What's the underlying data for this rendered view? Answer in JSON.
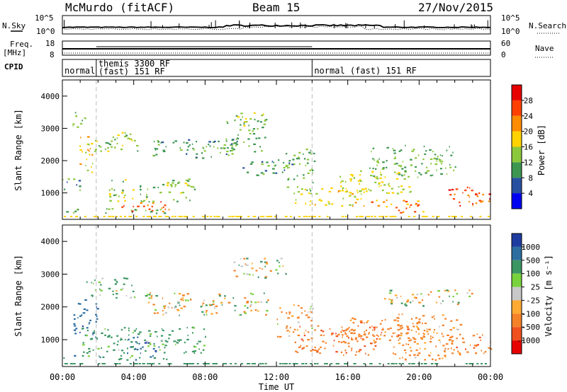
{
  "header": {
    "station": "McMurdo (fitACF)",
    "beam": "Beam 15",
    "date": "27/Nov/2015"
  },
  "top_panels": {
    "nsky_label": "N.Sky",
    "nsearch_label": "N.Search",
    "freq_label_1": "Freq.",
    "freq_label_2": "[MHz]",
    "nave_label": "Nave",
    "cpid_label": "CPID",
    "nsky_ticks": [
      "10^5",
      "10^0"
    ],
    "nsearch_ticks": [
      "10^5",
      "10^0"
    ],
    "freq_ticks": [
      "18",
      "8"
    ],
    "nave_ticks": [
      "60",
      "0"
    ],
    "cpid_segments": [
      {
        "label_lines": [
          "normal"
        ],
        "start_hour": 0,
        "end_hour": 1.9
      },
      {
        "label_lines": [
          "themis 3300 RF",
          "(fast) 151 RF"
        ],
        "start_hour": 1.9,
        "end_hour": 14.0
      },
      {
        "label_lines": [
          "normal (fast) 151 RF"
        ],
        "start_hour": 14.0,
        "end_hour": 24
      }
    ]
  },
  "power_panel": {
    "ylabel": "Slant Range [km]",
    "yticks": [
      "4000",
      "3000",
      "2000",
      "1000"
    ],
    "colorbar_label": "Power [dB]",
    "colorbar_ticks": [
      "28",
      "24",
      "20",
      "16",
      "12",
      "8",
      "4"
    ],
    "colorbar_colors": [
      "#e60000",
      "#ff4000",
      "#ff8c00",
      "#ffd200",
      "#8cc83c",
      "#3c9650",
      "#2850a0",
      "#0000f0"
    ]
  },
  "velocity_panel": {
    "ylabel": "Slant Range [km]",
    "yticks": [
      "4000",
      "3000",
      "2000",
      "1000"
    ],
    "colorbar_label": "Velocity [m s⁻¹]",
    "colorbar_ticks": [
      "1000",
      "500",
      "100",
      "25",
      "-25",
      "-100",
      "-500",
      "-1000"
    ],
    "colorbar_colors": [
      "#1e3ca0",
      "#2d6ea0",
      "#3c9664",
      "#78d23c",
      "#c8c8c8",
      "#ffaa32",
      "#f58228",
      "#f0501e",
      "#e60000"
    ]
  },
  "xaxis": {
    "label": "Time UT",
    "ticks": [
      "00:00",
      "04:00",
      "08:00",
      "12:00",
      "16:00",
      "20:00",
      "00:00"
    ]
  },
  "chart_data": [
    {
      "type": "heatmap",
      "title": "Power",
      "xlabel": "Time UT",
      "ylabel": "Slant Range [km]",
      "xlim": [
        0,
        24
      ],
      "ylim": [
        180,
        4500
      ],
      "value_label": "Power [dB]",
      "clim": [
        0,
        32
      ],
      "blobs": [
        {
          "t": 0.9,
          "r": 3300,
          "dt": 0.5,
          "dr": 250,
          "v": 12
        },
        {
          "t": 1.3,
          "r": 2200,
          "dt": 0.4,
          "dr": 600,
          "v": 18
        },
        {
          "t": 0.6,
          "r": 1300,
          "dt": 0.6,
          "dr": 200,
          "v": 10
        },
        {
          "t": 2.7,
          "r": 2600,
          "dt": 1.5,
          "dr": 300,
          "v": 14
        },
        {
          "t": 5.0,
          "r": 1100,
          "dt": 2.4,
          "dr": 350,
          "v": 14
        },
        {
          "t": 4.6,
          "r": 600,
          "dt": 1.4,
          "dr": 160,
          "v": 26
        },
        {
          "t": 3.0,
          "r": 450,
          "dt": 3.0,
          "dr": 80,
          "v": 12
        },
        {
          "t": 7.5,
          "r": 2400,
          "dt": 2.5,
          "dr": 300,
          "v": 10
        },
        {
          "t": 10.2,
          "r": 2800,
          "dt": 1.2,
          "dr": 500,
          "v": 12
        },
        {
          "t": 10.5,
          "r": 3300,
          "dt": 0.8,
          "dr": 200,
          "v": 14
        },
        {
          "t": 11.5,
          "r": 1800,
          "dt": 1.4,
          "dr": 250,
          "v": 10
        },
        {
          "t": 13.3,
          "r": 1700,
          "dt": 0.8,
          "dr": 700,
          "v": 12
        },
        {
          "t": 15.0,
          "r": 900,
          "dt": 2.0,
          "dr": 300,
          "v": 18
        },
        {
          "t": 17.5,
          "r": 1300,
          "dt": 2.0,
          "dr": 400,
          "v": 16
        },
        {
          "t": 18.7,
          "r": 600,
          "dt": 1.5,
          "dr": 200,
          "v": 22
        },
        {
          "t": 19.6,
          "r": 2000,
          "dt": 2.4,
          "dr": 500,
          "v": 12
        },
        {
          "t": 22.8,
          "r": 900,
          "dt": 1.2,
          "dr": 300,
          "v": 26
        }
      ]
    },
    {
      "type": "heatmap",
      "title": "Velocity",
      "xlabel": "Time UT",
      "ylabel": "Slant Range [km]",
      "xlim": [
        0,
        24
      ],
      "ylim": [
        180,
        4500
      ],
      "value_label": "Velocity [m s⁻¹]",
      "clim": [
        -1000,
        1000
      ],
      "blobs": [
        {
          "t": 1.3,
          "r": 1700,
          "dt": 0.7,
          "dr": 600,
          "v": 800
        },
        {
          "t": 2.7,
          "r": 2600,
          "dt": 1.4,
          "dr": 300,
          "v": 200
        },
        {
          "t": 4.5,
          "r": 1000,
          "dt": 3.5,
          "dr": 400,
          "v": 250
        },
        {
          "t": 4.5,
          "r": 850,
          "dt": 0.9,
          "dr": 250,
          "v": 900
        },
        {
          "t": 3.0,
          "r": 450,
          "dt": 3.0,
          "dr": 80,
          "v": 300
        },
        {
          "t": 8.0,
          "r": 2100,
          "dt": 3.5,
          "dr": 350,
          "v": 0
        },
        {
          "t": 11.0,
          "r": 3200,
          "dt": 1.5,
          "dr": 300,
          "v": 0
        },
        {
          "t": 13.0,
          "r": 1600,
          "dt": 1.0,
          "dr": 500,
          "v": -150
        },
        {
          "t": 15.5,
          "r": 1000,
          "dt": 2.5,
          "dr": 450,
          "v": -400
        },
        {
          "t": 18.0,
          "r": 1300,
          "dt": 2.5,
          "dr": 400,
          "v": -300
        },
        {
          "t": 20.5,
          "r": 1100,
          "dt": 2.0,
          "dr": 700,
          "v": -250
        },
        {
          "t": 20.5,
          "r": 2300,
          "dt": 2.5,
          "dr": 250,
          "v": 0
        },
        {
          "t": 22.8,
          "r": 900,
          "dt": 1.2,
          "dr": 300,
          "v": -350
        }
      ]
    }
  ]
}
